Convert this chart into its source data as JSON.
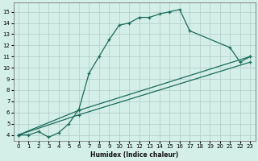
{
  "xlabel": "Humidex (Indice chaleur)",
  "bg_color": "#d4eee8",
  "grid_color": "#b0ccc8",
  "line_color": "#1a6b5a",
  "xlim": [
    -0.5,
    23.5
  ],
  "ylim": [
    3.5,
    15.8
  ],
  "xticks": [
    0,
    1,
    2,
    3,
    4,
    5,
    6,
    7,
    8,
    9,
    10,
    11,
    12,
    13,
    14,
    15,
    16,
    17,
    18,
    19,
    20,
    21,
    22,
    23
  ],
  "yticks": [
    4,
    5,
    6,
    7,
    8,
    9,
    10,
    11,
    12,
    13,
    14,
    15
  ],
  "line1_x": [
    0,
    1,
    2,
    3,
    4,
    5,
    6,
    7,
    8,
    9,
    10,
    11,
    12,
    13,
    14,
    15,
    16,
    17,
    21,
    22,
    23
  ],
  "line1_y": [
    4.0,
    4.0,
    4.3,
    3.8,
    4.2,
    5.0,
    6.3,
    9.5,
    11.0,
    12.5,
    13.8,
    14.0,
    14.5,
    14.5,
    14.8,
    15.0,
    15.2,
    13.3,
    11.8,
    10.5,
    11.0
  ],
  "line2_x": [
    0,
    6,
    23
  ],
  "line2_y": [
    4.0,
    6.2,
    11.0
  ],
  "line3_x": [
    0,
    6,
    23
  ],
  "line3_y": [
    4.0,
    5.8,
    10.5
  ]
}
